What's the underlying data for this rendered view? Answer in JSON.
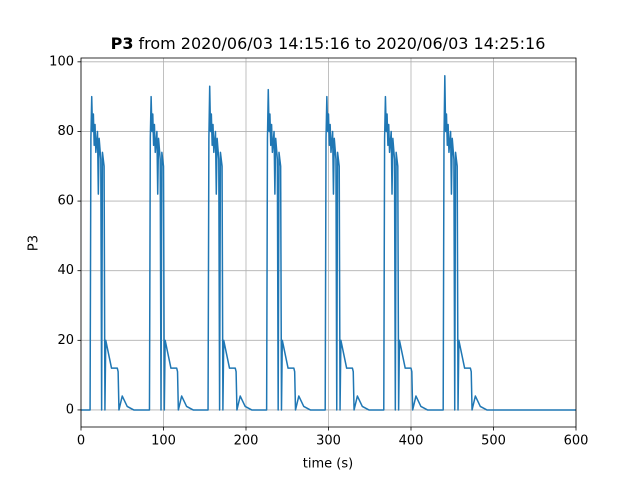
{
  "chart_data": {
    "type": "line",
    "title_prefix": "P3",
    "title": "from 2020/06/03 14:15:16 to 2020/06/03 14:25:16",
    "xlabel": "time (s)",
    "ylabel": "P3",
    "color": "#1f77b4",
    "grid": true,
    "xlim": [
      0,
      600
    ],
    "xticks": [
      0,
      100,
      200,
      300,
      400,
      500,
      600
    ],
    "ylim": [
      -4.9,
      101.1
    ],
    "yticks": [
      0,
      20,
      40,
      60,
      80,
      100
    ],
    "x": [
      0,
      11,
      12,
      13,
      14,
      15,
      16,
      17,
      18,
      20,
      21,
      22,
      24,
      25,
      26,
      28,
      29,
      30,
      37,
      44,
      45,
      46,
      50,
      56,
      64,
      83,
      84,
      85,
      86,
      87,
      88,
      89,
      90,
      92,
      93,
      94,
      96,
      97,
      98,
      100,
      101,
      102,
      109,
      116,
      117,
      118,
      122,
      128,
      136,
      154,
      155,
      156,
      157,
      158,
      159,
      160,
      161,
      163,
      164,
      165,
      167,
      168,
      169,
      171,
      172,
      173,
      180,
      187,
      188,
      189,
      193,
      199,
      207,
      225,
      226,
      227,
      228,
      229,
      230,
      231,
      232,
      234,
      235,
      236,
      238,
      239,
      240,
      242,
      243,
      244,
      251,
      258,
      259,
      260,
      264,
      270,
      278,
      296,
      297,
      298,
      299,
      300,
      301,
      302,
      303,
      305,
      306,
      307,
      309,
      310,
      311,
      313,
      314,
      315,
      322,
      329,
      330,
      331,
      335,
      341,
      349,
      367,
      368,
      369,
      370,
      371,
      372,
      373,
      374,
      376,
      377,
      378,
      380,
      381,
      382,
      384,
      385,
      386,
      393,
      400,
      401,
      402,
      406,
      412,
      420,
      439,
      440,
      441,
      442,
      443,
      444,
      445,
      446,
      448,
      449,
      450,
      452,
      453,
      454,
      456,
      457,
      458,
      465,
      472,
      473,
      474,
      478,
      484,
      492,
      600
    ],
    "values": [
      0,
      0,
      78,
      90,
      80,
      85,
      76,
      82,
      74,
      80,
      62,
      78,
      72,
      0,
      74,
      70,
      0,
      20,
      12,
      12,
      11,
      0,
      4,
      1,
      0,
      0,
      78,
      90,
      80,
      85,
      76,
      82,
      74,
      80,
      62,
      78,
      72,
      0,
      74,
      70,
      0,
      20,
      12,
      12,
      11,
      0,
      4,
      1,
      0,
      0,
      78,
      93,
      80,
      85,
      76,
      82,
      74,
      80,
      62,
      78,
      72,
      0,
      74,
      70,
      0,
      20,
      12,
      12,
      11,
      0,
      4,
      1,
      0,
      0,
      78,
      92,
      80,
      85,
      76,
      82,
      74,
      80,
      62,
      78,
      72,
      0,
      74,
      70,
      0,
      20,
      12,
      12,
      11,
      0,
      4,
      1,
      0,
      0,
      78,
      90,
      80,
      85,
      76,
      82,
      74,
      80,
      62,
      78,
      72,
      0,
      74,
      70,
      0,
      20,
      12,
      12,
      11,
      0,
      4,
      1,
      0,
      0,
      78,
      90,
      80,
      85,
      76,
      82,
      74,
      80,
      62,
      78,
      72,
      0,
      74,
      70,
      0,
      20,
      12,
      12,
      11,
      0,
      4,
      1,
      0,
      0,
      78,
      96,
      80,
      85,
      76,
      82,
      74,
      80,
      62,
      78,
      72,
      0,
      74,
      70,
      0,
      20,
      12,
      12,
      11,
      0,
      4,
      1,
      0,
      0
    ]
  }
}
